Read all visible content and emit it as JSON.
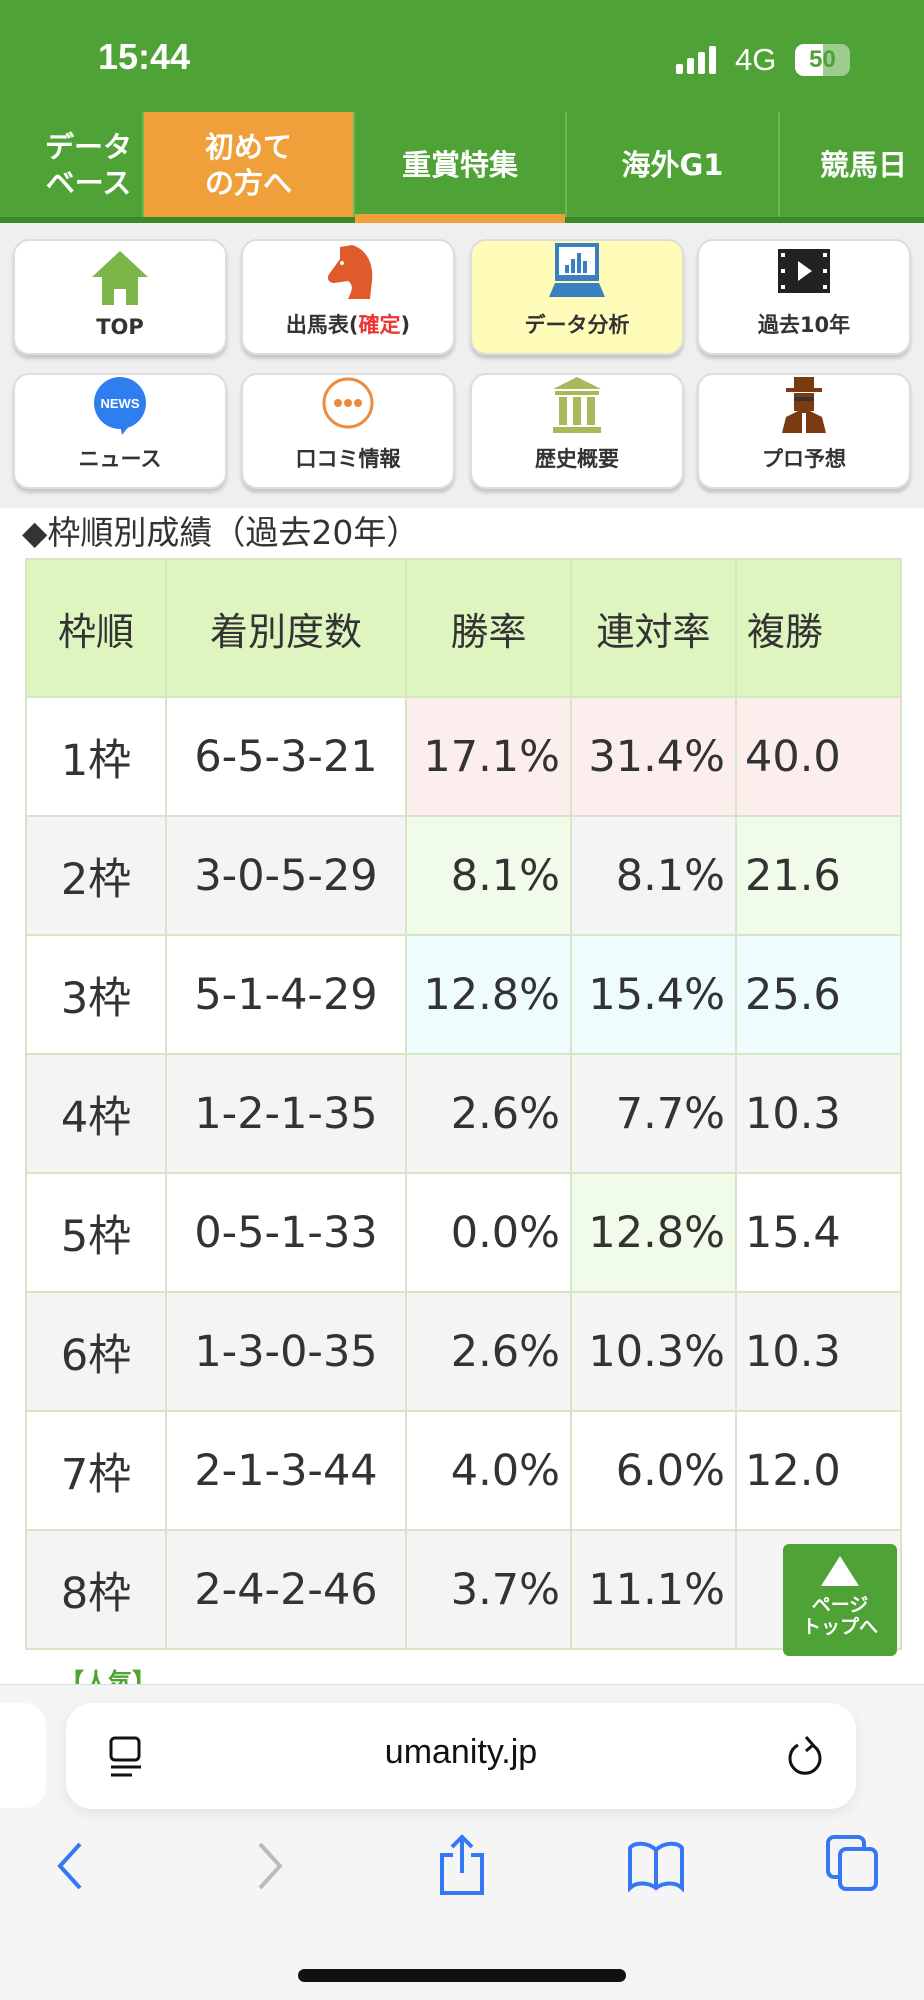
{
  "status": {
    "time": "15:44",
    "network": "4G",
    "battery": "50",
    "battery_level": 0.5
  },
  "nav": {
    "tabs": [
      {
        "label": "データ\nベース"
      },
      {
        "label": "初めて\nの方へ",
        "highlight": "orange"
      },
      {
        "label": "重賞特集",
        "active": true
      },
      {
        "label": "海外G1"
      },
      {
        "label": "競馬日"
      }
    ]
  },
  "menu": {
    "items": [
      {
        "label": "TOP",
        "icon": "house-icon"
      },
      {
        "label": "出馬表(",
        "label_red": "確定",
        "label_end": ")",
        "icon": "horse-icon"
      },
      {
        "label": "データ分析",
        "icon": "laptop-chart-icon",
        "highlighted": true
      },
      {
        "label": "過去10年",
        "icon": "video-icon"
      },
      {
        "label": "ニュース",
        "icon": "news-bubble-icon",
        "icon_text": "NEWS"
      },
      {
        "label": "口コミ情報",
        "icon": "chat-bubble-icon"
      },
      {
        "label": "歴史概要",
        "icon": "museum-icon"
      },
      {
        "label": "プロ予想",
        "icon": "detective-icon"
      }
    ]
  },
  "section": {
    "title": "◆枠順別成績（過去20年）"
  },
  "table": {
    "headers": [
      "枠順",
      "着別度数",
      "勝率",
      "連対率",
      "複勝"
    ],
    "rows": [
      {
        "frame": "1枠",
        "record": "6-5-3-21",
        "win": "17.1%",
        "quinella": "31.4%",
        "place": "40.0"
      },
      {
        "frame": "2枠",
        "record": "3-0-5-29",
        "win": "8.1%",
        "quinella": "8.1%",
        "place": "21.6"
      },
      {
        "frame": "3枠",
        "record": "5-1-4-29",
        "win": "12.8%",
        "quinella": "15.4%",
        "place": "25.6"
      },
      {
        "frame": "4枠",
        "record": "1-2-1-35",
        "win": "2.6%",
        "quinella": "7.7%",
        "place": "10.3"
      },
      {
        "frame": "5枠",
        "record": "0-5-1-33",
        "win": "0.0%",
        "quinella": "12.8%",
        "place": "15.4"
      },
      {
        "frame": "6枠",
        "record": "1-3-0-35",
        "win": "2.6%",
        "quinella": "10.3%",
        "place": "10.3"
      },
      {
        "frame": "7枠",
        "record": "2-1-3-44",
        "win": "4.0%",
        "quinella": "6.0%",
        "place": "12.0"
      },
      {
        "frame": "8枠",
        "record": "2-4-2-46",
        "win": "3.7%",
        "quinella": "11.1%",
        "place": ""
      }
    ],
    "highlight_colors": {
      "pink": "#fdeeee",
      "green": "#f1fbea",
      "cyan": "#effcfd"
    }
  },
  "page_top": {
    "label1": "ページ",
    "label2": "トップへ"
  },
  "more_text": "【人気】",
  "browser": {
    "url": "umanity.jp"
  },
  "colors": {
    "brand_green": "#4fa336",
    "orange": "#f0a03a",
    "header_bg": "#def5c0",
    "ios_blue": "#3478f6"
  }
}
